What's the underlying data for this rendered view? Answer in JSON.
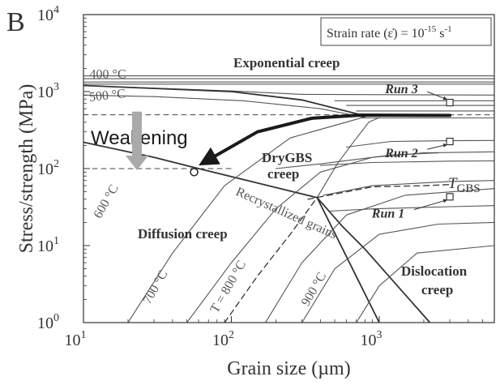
{
  "panel_label": "B",
  "chart_data": {
    "type": "line",
    "title": "",
    "xlabel": "Grain size (µm)",
    "ylabel": "Stress/strength (MPa)",
    "x_scale": "log",
    "y_scale": "log",
    "xlim": [
      10,
      6000
    ],
    "ylim": [
      1,
      10000
    ],
    "x_ticks": [
      {
        "value": 10,
        "base": "10",
        "exp": "1"
      },
      {
        "value": 100,
        "base": "10",
        "exp": "2"
      },
      {
        "value": 1000,
        "base": "10",
        "exp": "3"
      }
    ],
    "y_ticks": [
      {
        "value": 1,
        "base": "10",
        "exp": "0"
      },
      {
        "value": 10,
        "base": "10",
        "exp": "1"
      },
      {
        "value": 100,
        "base": "10",
        "exp": "2"
      },
      {
        "value": 1000,
        "base": "10",
        "exp": "3"
      },
      {
        "value": 10000,
        "base": "10",
        "exp": "4"
      }
    ],
    "legend_box": {
      "text": "Strain rate (ε̇) = 10",
      "exp": "-15",
      "unit": " s",
      "unit_exp": "-1"
    },
    "regions": {
      "exponential": "Exponential creep",
      "drygbs_1": "DryGBS",
      "drygbs_2": "creep",
      "diffusion": "Diffusion creep",
      "dislocation_1": "Dislocation",
      "dislocation_2": "creep",
      "weakening": "Weakening",
      "recrystallized": "Recrystallized grains",
      "tgbs": "T",
      "tgbs_sub": "GBS"
    },
    "isotherm_labels": [
      {
        "text": "400 °C",
        "x": 11,
        "y": 1500,
        "angle": 0
      },
      {
        "text": "500 °C",
        "x": 11,
        "y": 750,
        "angle": -6
      },
      {
        "text": "600 °C",
        "x": 13,
        "y": 22,
        "angle": -60
      },
      {
        "text": "700 °C",
        "x": 28,
        "y": 1.7,
        "angle": -60
      },
      {
        "text": "T = 800 °C",
        "x": 80,
        "y": 1.3,
        "angle": -60
      },
      {
        "text": "900 °C",
        "x": 330,
        "y": 1.6,
        "angle": -60
      }
    ],
    "runs": [
      {
        "name": "Run 3",
        "label_x": 1600,
        "label_y": 950,
        "x": 3000,
        "y": 720
      },
      {
        "name": "Run 2",
        "label_x": 1600,
        "label_y": 140,
        "x": 3000,
        "y": 225
      },
      {
        "name": "Run 1",
        "label_x": 1300,
        "label_y": 23,
        "x": 3000,
        "y": 43
      }
    ],
    "series": [
      {
        "style": "thin",
        "points": [
          [
            10,
            1600
          ],
          [
            6000,
            1600
          ]
        ]
      },
      {
        "style": "thin",
        "points": [
          [
            10,
            1470
          ],
          [
            6000,
            1470
          ]
        ]
      },
      {
        "style": "thin",
        "points": [
          [
            10,
            1330
          ],
          [
            6000,
            1330
          ]
        ]
      },
      {
        "style": "thin",
        "points": [
          [
            10,
            1250
          ],
          [
            6000,
            1250
          ]
        ]
      },
      {
        "style": "thin",
        "points": [
          [
            14,
            1170
          ],
          [
            100,
            1020
          ],
          [
            300,
            920
          ],
          [
            6000,
            900
          ]
        ]
      },
      {
        "style": "thin",
        "points": [
          [
            500,
            760
          ],
          [
            6000,
            760
          ]
        ]
      },
      {
        "style": "thin",
        "points": [
          [
            600,
            660
          ],
          [
            6000,
            660
          ]
        ]
      },
      {
        "style": "thin",
        "points": [
          [
            700,
            560
          ],
          [
            6000,
            560
          ]
        ]
      },
      {
        "style": "thin",
        "points": [
          [
            750,
            455
          ],
          [
            6000,
            455
          ]
        ]
      },
      {
        "style": "thin",
        "points": [
          [
            10,
            900
          ],
          [
            30,
            860
          ],
          [
            120,
            760
          ],
          [
            400,
            600
          ],
          [
            800,
            460
          ]
        ]
      },
      {
        "style": "thick",
        "points": [
          [
            10,
            1200
          ],
          [
            100,
            1000
          ],
          [
            300,
            780
          ],
          [
            750,
            500
          ]
        ]
      },
      {
        "style": "thick",
        "points": [
          [
            10,
            220
          ],
          [
            30,
            140
          ],
          [
            60,
            100
          ],
          [
            150,
            65
          ],
          [
            380,
            42
          ]
        ]
      },
      {
        "style": "thick",
        "points": [
          [
            380,
            42
          ],
          [
            560,
            18
          ],
          [
            800,
            9
          ],
          [
            2200,
            1
          ]
        ]
      },
      {
        "style": "thick",
        "points": [
          [
            380,
            42
          ],
          [
            1000,
            1
          ]
        ]
      },
      {
        "style": "thin",
        "points": [
          [
            380,
            42
          ],
          [
            520,
            115
          ],
          [
            680,
            230
          ],
          [
            850,
            400
          ],
          [
            1000,
            460
          ]
        ]
      },
      {
        "style": "thick",
        "points": [
          [
            750,
            490
          ],
          [
            3000,
            490
          ]
        ]
      },
      {
        "style": "thin",
        "points": [
          [
            20,
            1
          ],
          [
            40,
            8
          ],
          [
            90,
            60
          ],
          [
            250,
            250
          ],
          [
            800,
            470
          ]
        ]
      },
      {
        "style": "thin",
        "points": [
          [
            50,
            1
          ],
          [
            100,
            6
          ],
          [
            200,
            30
          ],
          [
            400,
            90
          ],
          [
            900,
            140
          ],
          [
            2000,
            160
          ],
          [
            6000,
            165
          ]
        ]
      },
      {
        "style": "thin",
        "points": [
          [
            170,
            1
          ],
          [
            300,
            6
          ],
          [
            600,
            25
          ],
          [
            1500,
            45
          ],
          [
            6000,
            55
          ]
        ]
      },
      {
        "style": "thin",
        "points": [
          [
            300,
            1
          ],
          [
            500,
            5
          ],
          [
            1000,
            14
          ],
          [
            2500,
            19
          ],
          [
            6000,
            20
          ]
        ]
      },
      {
        "style": "thin",
        "points": [
          [
            700,
            1
          ],
          [
            1000,
            3
          ],
          [
            1800,
            8
          ],
          [
            6000,
            10
          ]
        ]
      },
      {
        "style": "thin",
        "points": [
          [
            600,
            190
          ],
          [
            1200,
            225
          ],
          [
            3000,
            230
          ],
          [
            6000,
            232
          ]
        ]
      },
      {
        "style": "thin",
        "points": [
          [
            400,
            110
          ],
          [
            900,
            120
          ],
          [
            3000,
            125
          ],
          [
            6000,
            126
          ]
        ]
      },
      {
        "style": "thin",
        "points": [
          [
            420,
            45
          ],
          [
            900,
            60
          ],
          [
            3000,
            68
          ],
          [
            6000,
            70
          ]
        ]
      },
      {
        "style": "thin",
        "points": [
          [
            460,
            28
          ],
          [
            900,
            30
          ],
          [
            3000,
            32
          ],
          [
            6000,
            33
          ]
        ]
      },
      {
        "style": "thin",
        "points": [
          [
            200,
            100
          ],
          [
            400,
            115
          ],
          [
            1200,
            150
          ],
          [
            2500,
            160
          ]
        ]
      },
      {
        "style": "dashed",
        "points": [
          [
            330,
            40
          ],
          [
            900,
            58
          ],
          [
            2000,
            60
          ],
          [
            3000,
            62
          ]
        ]
      },
      {
        "style": "dashed",
        "points": [
          [
            90,
            1
          ],
          [
            150,
            4
          ],
          [
            250,
            14
          ],
          [
            380,
            42
          ]
        ]
      },
      {
        "style": "refdash",
        "points": [
          [
            10,
            500
          ],
          [
            6000,
            500
          ]
        ]
      },
      {
        "style": "refdash",
        "points": [
          [
            10,
            100
          ],
          [
            100,
            100
          ]
        ]
      },
      {
        "style": "weak-arrow",
        "points": [
          [
            3000,
            490
          ],
          [
            750,
            495
          ],
          [
            350,
            450
          ],
          [
            150,
            300
          ],
          [
            65,
            120
          ]
        ]
      }
    ],
    "weakening_arrow": {
      "x": 23,
      "y_from": 550,
      "y_to": 100
    },
    "weakening_circle": {
      "x": 56,
      "y": 90
    }
  }
}
